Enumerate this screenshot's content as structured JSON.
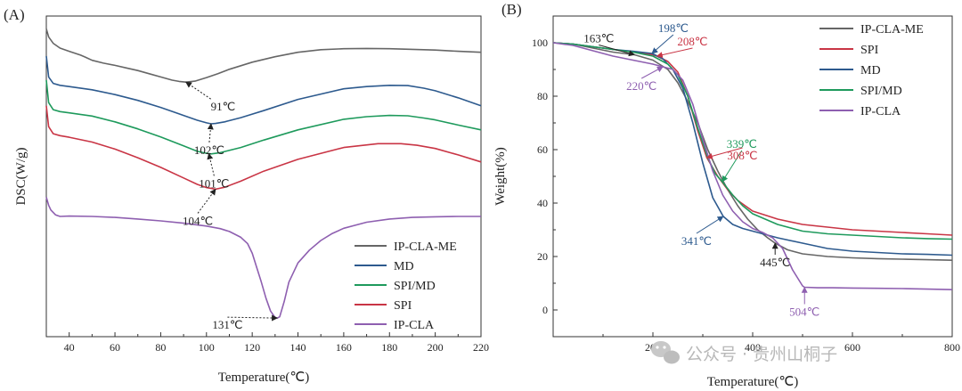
{
  "watermark": {
    "text": "公众号 · 贵州山桐子",
    "icon": "wechat-icon"
  },
  "chart_data": [
    {
      "type": "line",
      "panel_label": "(A)",
      "title": "",
      "xlabel": "Temperature(℃)",
      "ylabel": "DSC(W/g)",
      "xlim": [
        30,
        220
      ],
      "ylim": [
        0,
        1
      ],
      "xticks": [
        40,
        60,
        80,
        100,
        120,
        140,
        160,
        180,
        200,
        220
      ],
      "xtick_labels": [
        "40",
        "60",
        "80",
        "100",
        "120",
        "140",
        "160",
        "180",
        "200",
        "220"
      ],
      "grid": false,
      "legend_position": "bottom-right",
      "series": [
        {
          "name": "IP-CLA-ME",
          "color": "#666666",
          "x": [
            30,
            31,
            33,
            36,
            40,
            45,
            47,
            50,
            55,
            60,
            65,
            70,
            75,
            80,
            85,
            88,
            91,
            95,
            100,
            105,
            110,
            120,
            130,
            140,
            150,
            160,
            170,
            180,
            190,
            200,
            210,
            220
          ],
          "y": [
            0.96,
            0.935,
            0.915,
            0.9,
            0.89,
            0.878,
            0.872,
            0.862,
            0.853,
            0.846,
            0.838,
            0.83,
            0.82,
            0.81,
            0.8,
            0.796,
            0.794,
            0.797,
            0.808,
            0.82,
            0.834,
            0.856,
            0.873,
            0.887,
            0.895,
            0.898,
            0.899,
            0.898,
            0.896,
            0.894,
            0.89,
            0.887
          ]
        },
        {
          "name": "MD",
          "color": "#2d5a8e",
          "x": [
            30,
            31,
            33,
            36,
            40,
            50,
            60,
            70,
            80,
            90,
            96,
            100,
            102,
            104,
            108,
            115,
            125,
            140,
            160,
            170,
            180,
            188,
            195,
            200,
            210,
            220
          ],
          "y": [
            0.875,
            0.81,
            0.79,
            0.784,
            0.78,
            0.77,
            0.755,
            0.737,
            0.715,
            0.69,
            0.675,
            0.667,
            0.664,
            0.665,
            0.67,
            0.683,
            0.705,
            0.74,
            0.773,
            0.78,
            0.784,
            0.783,
            0.775,
            0.767,
            0.745,
            0.72
          ]
        },
        {
          "name": "SPI/MD",
          "color": "#1e9a5c",
          "x": [
            30,
            31,
            33,
            36,
            40,
            50,
            60,
            70,
            80,
            90,
            96,
            100,
            102,
            106,
            115,
            125,
            140,
            160,
            170,
            180,
            188,
            195,
            200,
            210,
            220
          ],
          "y": [
            0.8,
            0.73,
            0.708,
            0.702,
            0.698,
            0.688,
            0.67,
            0.648,
            0.623,
            0.595,
            0.578,
            0.572,
            0.57,
            0.574,
            0.59,
            0.613,
            0.645,
            0.678,
            0.686,
            0.69,
            0.689,
            0.682,
            0.676,
            0.66,
            0.645
          ]
        },
        {
          "name": "SPI",
          "color": "#c93545",
          "x": [
            30,
            31,
            33,
            36,
            40,
            50,
            60,
            70,
            80,
            90,
            96,
            100,
            104,
            108,
            115,
            125,
            140,
            160,
            175,
            185,
            192,
            200,
            210,
            220
          ],
          "y": [
            0.72,
            0.655,
            0.633,
            0.627,
            0.622,
            0.607,
            0.585,
            0.558,
            0.528,
            0.495,
            0.475,
            0.465,
            0.46,
            0.466,
            0.485,
            0.516,
            0.553,
            0.59,
            0.602,
            0.602,
            0.597,
            0.587,
            0.567,
            0.545
          ]
        },
        {
          "name": "IP-CLA",
          "color": "#8e5fb0",
          "x": [
            30,
            31,
            32,
            34,
            36,
            40,
            50,
            60,
            70,
            80,
            90,
            100,
            106,
            110,
            115,
            118,
            120,
            122,
            124,
            126,
            128,
            130,
            131,
            132,
            134,
            136,
            140,
            145,
            150,
            155,
            160,
            170,
            180,
            190,
            200,
            210,
            220
          ],
          "y": [
            0.435,
            0.41,
            0.395,
            0.38,
            0.375,
            0.376,
            0.375,
            0.372,
            0.367,
            0.361,
            0.354,
            0.345,
            0.337,
            0.328,
            0.31,
            0.29,
            0.26,
            0.215,
            0.17,
            0.12,
            0.08,
            0.06,
            0.058,
            0.062,
            0.11,
            0.17,
            0.23,
            0.27,
            0.3,
            0.322,
            0.338,
            0.357,
            0.367,
            0.372,
            0.374,
            0.375,
            0.375
          ]
        }
      ],
      "annotations": [
        {
          "text": "91℃",
          "x": 91,
          "y": 0.794,
          "color": "#222222"
        },
        {
          "text": "102℃",
          "x": 102,
          "y": 0.664,
          "color": "#222222"
        },
        {
          "text": "101℃",
          "x": 101,
          "y": 0.571,
          "color": "#222222"
        },
        {
          "text": "104℃",
          "x": 104,
          "y": 0.46,
          "color": "#222222"
        },
        {
          "text": "131℃",
          "x": 131,
          "y": 0.058,
          "color": "#222222"
        }
      ]
    },
    {
      "type": "line",
      "panel_label": "(B)",
      "title": "",
      "xlabel": "Temperature(℃)",
      "ylabel": "Weight(%)",
      "xlim": [
        0,
        800
      ],
      "ylim": [
        -10,
        110
      ],
      "xticks": [
        200,
        400,
        600,
        800
      ],
      "xtick_labels": [
        "200",
        "400",
        "600",
        "800"
      ],
      "yticks": [
        0,
        20,
        40,
        60,
        80,
        100
      ],
      "ytick_labels": [
        "0",
        "20",
        "40",
        "60",
        "80",
        "100"
      ],
      "grid": false,
      "legend_position": "top-right",
      "series": [
        {
          "name": "IP-CLA-ME",
          "color": "#666666",
          "x": [
            0,
            40,
            80,
            120,
            163,
            200,
            230,
            250,
            270,
            290,
            310,
            330,
            350,
            370,
            390,
            410,
            430,
            445,
            470,
            500,
            550,
            600,
            650,
            700,
            750,
            800
          ],
          "y": [
            100,
            99.5,
            98,
            96.5,
            95.5,
            93.5,
            90,
            85,
            78,
            70,
            60,
            52,
            45,
            39,
            34,
            30,
            27,
            25,
            22.5,
            21,
            20,
            19.5,
            19.2,
            19,
            18.8,
            18.6
          ]
        },
        {
          "name": "SPI",
          "color": "#c93545",
          "x": [
            0,
            40,
            80,
            120,
            160,
            200,
            208,
            230,
            250,
            270,
            290,
            308,
            330,
            350,
            370,
            400,
            450,
            500,
            550,
            600,
            650,
            700,
            750,
            800
          ],
          "y": [
            100,
            99.5,
            98.5,
            97.5,
            96.5,
            95.5,
            95,
            93,
            89,
            80,
            67,
            57,
            50,
            45,
            41,
            37,
            34,
            32,
            31,
            30,
            29.5,
            29,
            28.5,
            28
          ]
        },
        {
          "name": "MD",
          "color": "#2d5a8e",
          "x": [
            0,
            40,
            80,
            120,
            160,
            198,
            220,
            240,
            260,
            280,
            300,
            320,
            341,
            360,
            380,
            400,
            450,
            500,
            550,
            600,
            650,
            700,
            750,
            800
          ],
          "y": [
            100,
            99.5,
            98.5,
            97.5,
            96.8,
            96,
            94,
            90,
            83,
            70,
            55,
            42,
            35,
            32,
            30.5,
            29.5,
            27,
            25,
            23,
            22,
            21.5,
            21,
            20.8,
            20.5
          ]
        },
        {
          "name": "SPI/MD",
          "color": "#1e9a5c",
          "x": [
            0,
            40,
            80,
            120,
            160,
            200,
            230,
            250,
            270,
            290,
            310,
            325,
            339,
            360,
            380,
            400,
            450,
            500,
            550,
            600,
            650,
            700,
            750,
            800
          ],
          "y": [
            100,
            99.5,
            98.5,
            97.5,
            96.5,
            95,
            92,
            88,
            80,
            68,
            57,
            51,
            48,
            43,
            39,
            36,
            32,
            29.5,
            28.5,
            28,
            27.5,
            27,
            26.7,
            26.5
          ]
        },
        {
          "name": "IP-CLA",
          "color": "#8e5fb0",
          "x": [
            0,
            40,
            80,
            120,
            160,
            200,
            220,
            240,
            260,
            280,
            300,
            320,
            340,
            360,
            380,
            400,
            420,
            440,
            460,
            480,
            500,
            504,
            530,
            560,
            600,
            650,
            700,
            750,
            800
          ],
          "y": [
            100,
            99,
            97,
            95,
            93.5,
            92,
            91,
            90,
            86,
            77,
            64,
            52,
            43,
            37,
            33,
            30.5,
            29,
            27,
            23,
            15,
            9,
            8.5,
            8.3,
            8.3,
            8.2,
            8.1,
            8,
            7.8,
            7.6
          ]
        }
      ],
      "annotations": [
        {
          "text": "163℃",
          "x": 163,
          "y": 95.5,
          "color": "#222222"
        },
        {
          "text": "198℃",
          "x": 198,
          "y": 96,
          "color": "#2d5a8e"
        },
        {
          "text": "208℃",
          "x": 208,
          "y": 95,
          "color": "#c93545"
        },
        {
          "text": "220℃",
          "x": 220,
          "y": 91,
          "color": "#8e5fb0"
        },
        {
          "text": "339℃",
          "x": 339,
          "y": 48,
          "color": "#1e9a5c"
        },
        {
          "text": "308℃",
          "x": 308,
          "y": 57,
          "color": "#c93545"
        },
        {
          "text": "341℃",
          "x": 341,
          "y": 35,
          "color": "#2d5a8e"
        },
        {
          "text": "445℃",
          "x": 445,
          "y": 25,
          "color": "#222222"
        },
        {
          "text": "504℃",
          "x": 504,
          "y": 8.5,
          "color": "#8e5fb0"
        }
      ]
    }
  ]
}
